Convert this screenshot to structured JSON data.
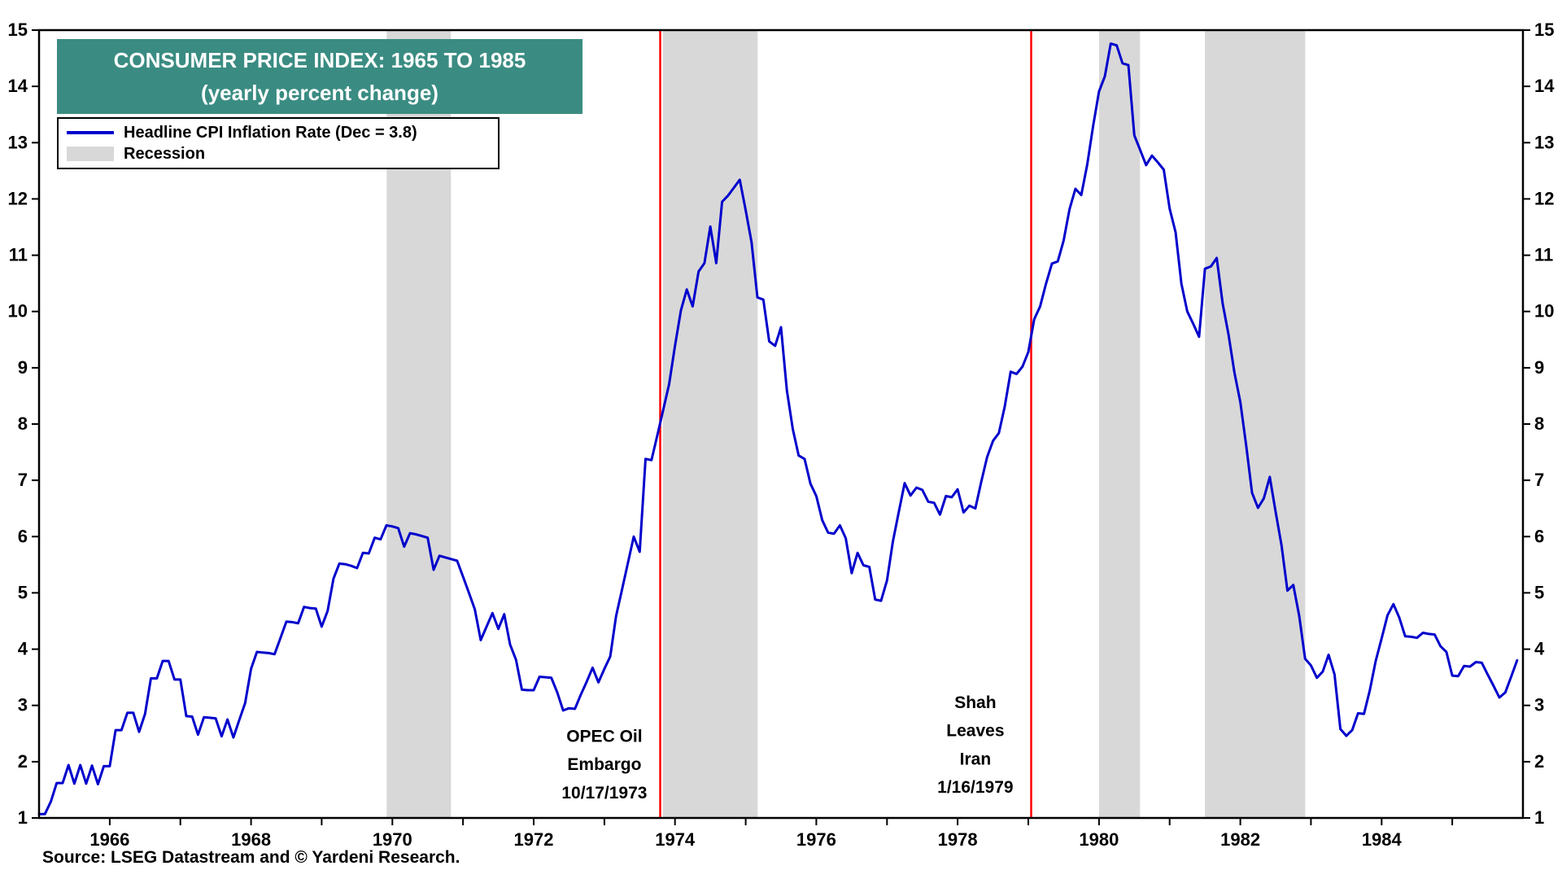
{
  "page": {
    "source": "Source: LSEG Datastream and © Yardeni Research."
  },
  "title_box": {
    "line1": "CONSUMER PRICE INDEX: 1965 TO 1985",
    "line2": "(yearly percent change)"
  },
  "legend": {
    "series_label": "Headline CPI Inflation Rate (Dec = 3.8)",
    "recession_label": "Recession"
  },
  "chart_data": {
    "type": "line",
    "title": "CONSUMER PRICE INDEX: 1965 TO 1985",
    "subtitle": "(yearly percent change)",
    "xlabel": "",
    "ylabel": "yearly percent change",
    "xlim": [
      1965,
      1986
    ],
    "ylim": [
      1,
      15
    ],
    "grid": false,
    "legend_position": "top-left",
    "yticks": [
      1,
      2,
      3,
      4,
      5,
      6,
      7,
      8,
      9,
      10,
      11,
      12,
      13,
      14,
      15
    ],
    "xticks": [
      1966,
      1967,
      1968,
      1969,
      1970,
      1971,
      1972,
      1973,
      1974,
      1975,
      1976,
      1977,
      1978,
      1979,
      1980,
      1981,
      1982,
      1983,
      1984,
      1985
    ],
    "xtick_label_years": [
      1966,
      1968,
      1970,
      1972,
      1974,
      1976,
      1978,
      1980,
      1982,
      1984
    ],
    "colors": {
      "line": "#0000CC",
      "recession": "#D8D8D8",
      "event_line": "#FF0000",
      "frame": "#000000",
      "title_bg": "#3A8C82"
    },
    "recessions": [
      [
        1969.92,
        1970.83
      ],
      [
        1973.83,
        1975.17
      ],
      [
        1980.0,
        1980.58
      ],
      [
        1981.5,
        1982.92
      ]
    ],
    "events": [
      {
        "x": 1973.79,
        "label": "OPEC Oil Embargo 10/17/1973",
        "lines": [
          "OPEC Oil",
          "Embargo",
          "10/17/1973"
        ],
        "text_x": 1973.0,
        "text_y": 2.35,
        "line_step": 0.5
      },
      {
        "x": 1979.04,
        "label": "Shah Leaves Iran 1/16/1979",
        "lines": [
          "Shah",
          "Leaves",
          "Iran",
          "1/16/1979"
        ],
        "text_x": 1978.25,
        "text_y": 2.95,
        "line_step": 0.5
      }
    ],
    "series": [
      {
        "name": "Headline CPI Inflation Rate (Dec = 3.8)",
        "start_year": 1965,
        "frequency": "monthly",
        "values": [
          1.07,
          1.07,
          1.29,
          1.62,
          1.62,
          1.94,
          1.61,
          1.94,
          1.61,
          1.93,
          1.6,
          1.92,
          1.92,
          2.56,
          2.56,
          2.87,
          2.87,
          2.53,
          2.85,
          3.48,
          3.48,
          3.79,
          3.79,
          3.46,
          3.46,
          2.81,
          2.8,
          2.48,
          2.79,
          2.78,
          2.77,
          2.45,
          2.75,
          2.43,
          2.74,
          3.04,
          3.65,
          3.95,
          3.94,
          3.93,
          3.91,
          4.2,
          4.49,
          4.48,
          4.46,
          4.75,
          4.73,
          4.72,
          4.4,
          4.68,
          5.25,
          5.52,
          5.51,
          5.48,
          5.44,
          5.71,
          5.7,
          5.98,
          5.95,
          6.2,
          6.18,
          6.15,
          5.82,
          6.06,
          6.04,
          6.01,
          5.98,
          5.41,
          5.66,
          5.63,
          5.6,
          5.57,
          5.29,
          5.0,
          4.71,
          4.16,
          4.4,
          4.64,
          4.36,
          4.62,
          4.08,
          3.81,
          3.28,
          3.27,
          3.27,
          3.51,
          3.5,
          3.49,
          3.23,
          2.91,
          2.95,
          2.94,
          3.19,
          3.42,
          3.67,
          3.41,
          3.65,
          3.87,
          4.59,
          5.06,
          5.53,
          6.0,
          5.73,
          7.38,
          7.36,
          7.8,
          8.25,
          8.71,
          9.39,
          10.02,
          10.39,
          10.09,
          10.71,
          10.86,
          11.51,
          10.86,
          11.95,
          12.06,
          12.2,
          12.34,
          11.8,
          11.23,
          10.25,
          10.21,
          9.47,
          9.39,
          9.72,
          8.6,
          7.91,
          7.44,
          7.38,
          6.94,
          6.72,
          6.29,
          6.07,
          6.05,
          6.2,
          5.97,
          5.35,
          5.71,
          5.49,
          5.46,
          4.88,
          4.86,
          5.22,
          5.91,
          6.44,
          6.95,
          6.73,
          6.87,
          6.83,
          6.62,
          6.6,
          6.39,
          6.72,
          6.7,
          6.84,
          6.43,
          6.55,
          6.5,
          6.97,
          7.41,
          7.7,
          7.84,
          8.31,
          8.93,
          8.89,
          9.02,
          9.28,
          9.86,
          10.09,
          10.49,
          10.85,
          10.89,
          11.26,
          11.82,
          12.18,
          12.07,
          12.61,
          13.29,
          13.91,
          14.18,
          14.76,
          14.73,
          14.41,
          14.38,
          13.13,
          12.87,
          12.6,
          12.77,
          12.65,
          12.52,
          11.83,
          11.41,
          10.49,
          10.0,
          9.78,
          9.55,
          10.76,
          10.8,
          10.95,
          10.14,
          9.59,
          8.92,
          8.39,
          7.62,
          6.78,
          6.51,
          6.68,
          7.06,
          6.44,
          5.85,
          5.04,
          5.14,
          4.59,
          3.83,
          3.71,
          3.49,
          3.6,
          3.9,
          3.55,
          2.58,
          2.46,
          2.56,
          2.86,
          2.85,
          3.27,
          3.79,
          4.19,
          4.6,
          4.8,
          4.56,
          4.23,
          4.22,
          4.2,
          4.29,
          4.27,
          4.26,
          4.05,
          3.95,
          3.53,
          3.52,
          3.7,
          3.69,
          3.77,
          3.76,
          3.55,
          3.35,
          3.14,
          3.23,
          3.51,
          3.8
        ]
      }
    ],
    "source": "Source: LSEG Datastream and © Yardeni Research."
  }
}
